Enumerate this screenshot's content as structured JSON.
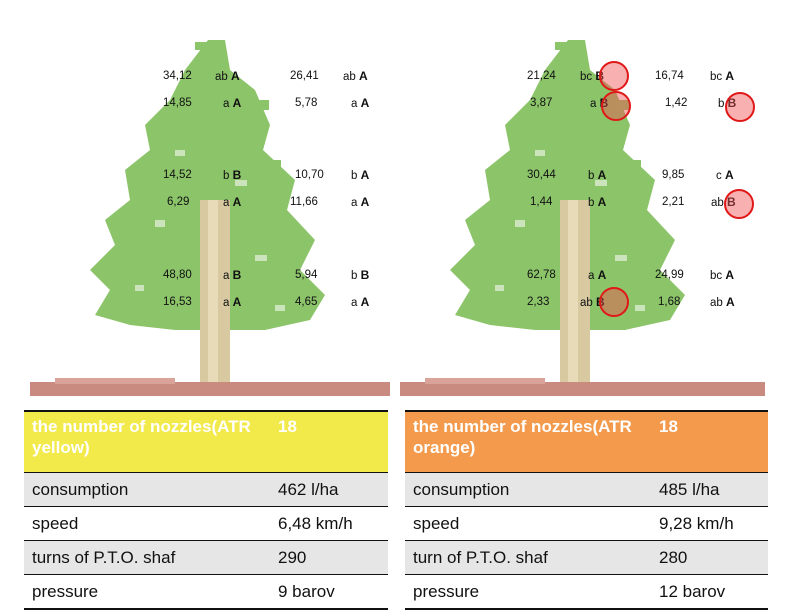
{
  "left_tree": {
    "rows": [
      {
        "v1": "34,12",
        "l1": "ab",
        "g1": "A",
        "v2": "26,41",
        "l2": "ab",
        "g2": "A"
      },
      {
        "v1": "14,85",
        "l1": "a",
        "g1": "A",
        "v2": "5,78",
        "l2": "a",
        "g2": "A"
      },
      {
        "v1": "14,52",
        "l1": "b",
        "g1": "B",
        "v2": "10,70",
        "l2": "b",
        "g2": "A"
      },
      {
        "v1": "6,29",
        "l1": "a",
        "g1": "A",
        "v2": "11,66",
        "l2": "a",
        "g2": "A"
      },
      {
        "v1": "48,80",
        "l1": "a",
        "g1": "B",
        "v2": "5,94",
        "l2": "b",
        "g2": "B"
      },
      {
        "v1": "16,53",
        "l1": "a",
        "g1": "A",
        "v2": "4,65",
        "l2": "a",
        "g2": "A"
      }
    ]
  },
  "right_tree": {
    "rows": [
      {
        "v1": "21,24",
        "l1": "bc",
        "g1": "B",
        "v2": "16,74",
        "l2": "bc",
        "g2": "A"
      },
      {
        "v1": "3,87",
        "l1": "a",
        "g1": "B",
        "v2": "1,42",
        "l2": "b",
        "g2": "B"
      },
      {
        "v1": "30,44",
        "l1": "b",
        "g1": "A",
        "v2": "9,85",
        "l2": "c",
        "g2": "A"
      },
      {
        "v1": "1,44",
        "l1": "b",
        "g1": "A",
        "v2": "2,21",
        "l2": "ab",
        "g2": "B"
      },
      {
        "v1": "62,78",
        "l1": "a",
        "g1": "A",
        "v2": "24,99",
        "l2": "bc",
        "g2": "A"
      },
      {
        "v1": "2,33",
        "l1": "ab",
        "g1": "B",
        "v2": "1,68",
        "l2": "ab",
        "g2": "A"
      }
    ]
  },
  "colors": {
    "foliage": "#8cc46a",
    "trunk": "#d8c9a0",
    "ground": "#c98a80",
    "yellow_header": "#f2e94a",
    "orange_header": "#f39a4c",
    "marker": "#e01818"
  },
  "table_left": {
    "header_label": "the number of nozzles(ATR yellow)",
    "header_value": "18",
    "rows": [
      {
        "label": "consumption",
        "value": "462 l/ha"
      },
      {
        "label": "speed",
        "value": "6,48 km/h"
      },
      {
        "label": "turns of P.T.O. shaf",
        "value": "290"
      },
      {
        "label": "pressure",
        "value": "9 barov"
      }
    ]
  },
  "table_right": {
    "header_label": "the number of nozzles(ATR orange)",
    "header_value": "18",
    "rows": [
      {
        "label": "consumption",
        "value": "485 l/ha"
      },
      {
        "label": "speed",
        "value": "9,28 km/h"
      },
      {
        "label": "turn of P.T.O. shaf",
        "value": "280"
      },
      {
        "label": "pressure",
        "value": "12 barov"
      }
    ]
  }
}
